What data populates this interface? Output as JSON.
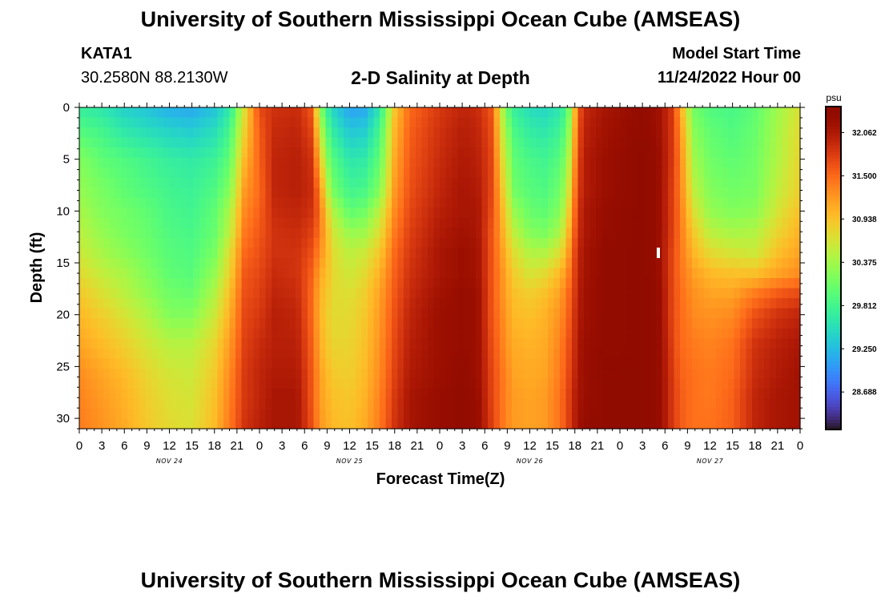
{
  "page": {
    "title": "University of Southern Mississippi Ocean Cube (AMSEAS)",
    "station_id": "KATA1",
    "station_coords": "30.2580N  88.2130W",
    "subtitle": "2-D Salinity at Depth",
    "model_start_label": "Model Start Time",
    "model_start_value": "11/24/2022 Hour 00",
    "footer_title": "University of Southern Mississippi Ocean Cube (AMSEAS)"
  },
  "chart_data": {
    "type": "heatmap",
    "title": "2-D Salinity at Depth",
    "xlabel": "Forecast Time(Z)",
    "ylabel": "Depth (ft)",
    "x_range_hours": [
      0,
      96
    ],
    "y_range_ft": [
      0,
      31
    ],
    "x_tick_labels": [
      "0",
      "3",
      "6",
      "9",
      "12",
      "15",
      "18",
      "21",
      "0",
      "3",
      "6",
      "9",
      "12",
      "15",
      "18",
      "21",
      "0",
      "3",
      "6",
      "9",
      "12",
      "15",
      "18",
      "21",
      "0",
      "3",
      "6",
      "9",
      "12",
      "15",
      "18",
      "21",
      "0"
    ],
    "y_ticks": [
      0,
      5,
      10,
      15,
      20,
      25,
      30
    ],
    "date_labels": [
      {
        "label": "NOV 24",
        "hour": 12
      },
      {
        "label": "NOV 25",
        "hour": 36
      },
      {
        "label": "NOV 26",
        "hour": 60
      },
      {
        "label": "NOV 27",
        "hour": 84
      }
    ],
    "colorbar": {
      "unit": "psu",
      "range": [
        28.2,
        32.4
      ],
      "tick_labels": [
        "32.062",
        "31.500",
        "30.938",
        "30.375",
        "29.812",
        "29.250",
        "28.688"
      ],
      "tick_values": [
        32.062,
        31.5,
        30.938,
        30.375,
        29.812,
        29.25,
        28.688
      ],
      "colormap": "turbo"
    },
    "salinity_profiles_psu": {
      "depths_ft": [
        0,
        2,
        5,
        8,
        10,
        12,
        14,
        16,
        18,
        20,
        23,
        26,
        28,
        31
      ],
      "profiles": [
        {
          "hour": 0,
          "values": [
            29.7,
            29.9,
            30.2,
            30.3,
            30.4,
            30.5,
            30.6,
            30.75,
            30.9,
            31.0,
            31.15,
            31.3,
            31.35,
            31.4
          ]
        },
        {
          "hour": 3,
          "values": [
            29.6,
            29.8,
            30.0,
            30.15,
            30.2,
            30.3,
            30.4,
            30.55,
            30.7,
            30.85,
            31.0,
            31.15,
            31.2,
            31.25
          ]
        },
        {
          "hour": 6,
          "values": [
            29.4,
            29.6,
            29.9,
            30.0,
            30.1,
            30.15,
            30.25,
            30.4,
            30.5,
            30.65,
            30.85,
            31.0,
            31.05,
            31.1
          ]
        },
        {
          "hour": 9,
          "values": [
            29.3,
            29.5,
            29.8,
            29.9,
            30.0,
            30.05,
            30.1,
            30.2,
            30.3,
            30.45,
            30.65,
            30.8,
            30.85,
            30.9
          ]
        },
        {
          "hour": 12,
          "values": [
            29.15,
            29.4,
            29.7,
            29.8,
            29.85,
            29.9,
            29.95,
            30.0,
            30.1,
            30.2,
            30.5,
            30.65,
            30.7,
            30.75
          ]
        },
        {
          "hour": 15,
          "values": [
            29.1,
            29.35,
            29.65,
            29.75,
            29.8,
            29.85,
            29.9,
            29.95,
            30.05,
            30.2,
            30.5,
            30.6,
            30.65,
            30.7
          ]
        },
        {
          "hour": 18,
          "values": [
            29.3,
            29.5,
            29.75,
            29.9,
            30.0,
            30.05,
            30.15,
            30.3,
            30.45,
            30.6,
            30.8,
            30.9,
            30.95,
            31.0
          ]
        },
        {
          "hour": 20,
          "values": [
            29.6,
            29.8,
            30.0,
            30.2,
            30.4,
            30.5,
            30.7,
            30.8,
            30.95,
            31.05,
            31.2,
            31.3,
            31.35,
            31.4
          ]
        },
        {
          "hour": 22,
          "values": [
            30.7,
            30.8,
            31.0,
            31.2,
            31.3,
            31.4,
            31.5,
            31.6,
            31.65,
            31.7,
            31.75,
            31.8,
            31.8,
            31.85
          ]
        },
        {
          "hour": 24,
          "values": [
            31.7,
            31.6,
            31.55,
            31.5,
            31.55,
            31.6,
            31.65,
            31.7,
            31.75,
            31.8,
            31.9,
            31.95,
            31.95,
            32.0
          ]
        },
        {
          "hour": 26,
          "values": [
            31.85,
            31.9,
            31.95,
            31.95,
            31.9,
            31.85,
            31.85,
            31.9,
            31.95,
            32.0,
            32.0,
            32.05,
            32.1,
            32.1
          ]
        },
        {
          "hour": 29,
          "values": [
            31.9,
            31.95,
            32.0,
            32.0,
            31.95,
            31.9,
            31.85,
            31.85,
            31.9,
            31.95,
            32.0,
            32.05,
            32.1,
            32.1
          ]
        },
        {
          "hour": 31,
          "values": [
            31.6,
            31.7,
            31.85,
            31.9,
            31.85,
            31.75,
            31.65,
            31.55,
            31.5,
            31.5,
            31.55,
            31.6,
            31.6,
            31.65
          ]
        },
        {
          "hour": 32,
          "values": [
            30.3,
            30.6,
            31.0,
            31.4,
            31.5,
            31.45,
            31.3,
            31.15,
            31.05,
            31.05,
            31.1,
            31.2,
            31.2,
            31.25
          ]
        },
        {
          "hour": 33,
          "values": [
            29.7,
            29.9,
            30.2,
            30.5,
            30.8,
            30.95,
            31.0,
            30.95,
            30.9,
            30.85,
            30.9,
            31.0,
            31.05,
            31.1
          ]
        },
        {
          "hour": 34,
          "values": [
            29.4,
            29.6,
            29.9,
            30.1,
            30.4,
            30.6,
            30.7,
            30.75,
            30.75,
            30.75,
            30.8,
            30.9,
            30.95,
            31.0
          ]
        },
        {
          "hour": 36,
          "values": [
            29.05,
            29.3,
            29.6,
            29.8,
            30.0,
            30.3,
            30.5,
            30.6,
            30.7,
            30.75,
            30.8,
            30.85,
            30.9,
            30.95
          ]
        },
        {
          "hour": 38,
          "values": [
            29.1,
            29.35,
            29.65,
            29.85,
            30.1,
            30.35,
            30.6,
            30.75,
            30.85,
            30.9,
            30.95,
            31.0,
            31.05,
            31.1
          ]
        },
        {
          "hour": 40,
          "values": [
            29.6,
            29.8,
            30.0,
            30.2,
            30.5,
            30.7,
            30.9,
            31.05,
            31.15,
            31.2,
            31.25,
            31.3,
            31.35,
            31.4
          ]
        },
        {
          "hour": 42,
          "values": [
            30.9,
            31.0,
            31.1,
            31.2,
            31.3,
            31.4,
            31.5,
            31.55,
            31.6,
            31.65,
            31.7,
            31.75,
            31.8,
            31.85
          ]
        },
        {
          "hour": 44,
          "values": [
            31.5,
            31.55,
            31.6,
            31.65,
            31.7,
            31.75,
            31.8,
            31.85,
            31.9,
            31.95,
            32.0,
            32.05,
            32.1,
            32.1
          ]
        },
        {
          "hour": 48,
          "values": [
            31.8,
            31.85,
            31.9,
            31.95,
            32.0,
            32.05,
            32.1,
            32.1,
            32.15,
            32.2,
            32.2,
            32.2,
            32.25,
            32.25
          ]
        },
        {
          "hour": 51,
          "values": [
            31.95,
            32.0,
            32.05,
            32.1,
            32.1,
            32.15,
            32.2,
            32.2,
            32.25,
            32.25,
            32.25,
            32.3,
            32.3,
            32.3
          ]
        },
        {
          "hour": 53,
          "values": [
            31.9,
            31.95,
            32.0,
            32.05,
            32.1,
            32.1,
            32.15,
            32.15,
            32.2,
            32.2,
            32.2,
            32.2,
            32.25,
            32.25
          ]
        },
        {
          "hour": 55,
          "values": [
            31.6,
            31.65,
            31.7,
            31.7,
            31.65,
            31.6,
            31.6,
            31.6,
            31.6,
            31.6,
            31.65,
            31.7,
            31.7,
            31.75
          ]
        },
        {
          "hour": 56,
          "values": [
            30.7,
            30.8,
            30.95,
            31.1,
            31.2,
            31.25,
            31.3,
            31.35,
            31.35,
            31.4,
            31.45,
            31.5,
            31.5,
            31.5
          ]
        },
        {
          "hour": 57,
          "values": [
            30.0,
            30.2,
            30.4,
            30.55,
            30.7,
            30.8,
            30.95,
            31.05,
            31.1,
            31.15,
            31.2,
            31.3,
            31.3,
            31.3
          ]
        },
        {
          "hour": 58,
          "values": [
            29.7,
            29.85,
            30.0,
            30.1,
            30.3,
            30.5,
            30.7,
            30.85,
            30.95,
            31.0,
            31.1,
            31.15,
            31.2,
            31.2
          ]
        },
        {
          "hour": 60,
          "values": [
            29.5,
            29.65,
            29.85,
            29.95,
            30.05,
            30.2,
            30.45,
            30.65,
            30.85,
            30.95,
            31.05,
            31.1,
            31.15,
            31.15
          ]
        },
        {
          "hour": 62,
          "values": [
            29.45,
            29.6,
            29.8,
            29.9,
            30.0,
            30.15,
            30.45,
            30.75,
            30.95,
            31.05,
            31.1,
            31.15,
            31.2,
            31.2
          ]
        },
        {
          "hour": 64,
          "values": [
            29.6,
            29.75,
            29.95,
            30.1,
            30.2,
            30.4,
            30.7,
            31.0,
            31.15,
            31.25,
            31.35,
            31.4,
            31.45,
            31.45
          ]
        },
        {
          "hour": 65,
          "values": [
            29.9,
            30.05,
            30.3,
            30.5,
            30.7,
            30.9,
            31.1,
            31.3,
            31.45,
            31.5,
            31.6,
            31.65,
            31.7,
            31.7
          ]
        },
        {
          "hour": 66,
          "values": [
            31.0,
            31.1,
            31.25,
            31.4,
            31.5,
            31.6,
            31.7,
            31.75,
            31.8,
            31.85,
            31.9,
            31.95,
            32.0,
            32.0
          ]
        },
        {
          "hour": 67,
          "values": [
            31.9,
            31.95,
            32.0,
            32.0,
            32.05,
            32.05,
            32.1,
            32.1,
            32.15,
            32.15,
            32.2,
            32.2,
            32.2,
            32.25
          ]
        },
        {
          "hour": 70,
          "values": [
            32.1,
            32.15,
            32.2,
            32.2,
            32.25,
            32.25,
            32.3,
            32.3,
            32.3,
            32.3,
            32.3,
            32.35,
            32.35,
            32.35
          ]
        },
        {
          "hour": 75,
          "values": [
            32.3,
            32.3,
            32.35,
            32.35,
            32.35,
            32.35,
            32.35,
            32.35,
            32.35,
            32.35,
            32.35,
            32.35,
            32.35,
            32.35
          ]
        },
        {
          "hour": 77,
          "values": [
            32.2,
            32.2,
            32.25,
            32.25,
            32.25,
            32.25,
            32.25,
            32.25,
            32.3,
            32.3,
            32.3,
            32.3,
            32.3,
            32.3
          ]
        },
        {
          "hour": 79,
          "values": [
            31.8,
            31.8,
            31.8,
            31.75,
            31.75,
            31.75,
            31.7,
            31.7,
            31.7,
            31.7,
            31.75,
            31.8,
            31.8,
            31.8
          ]
        },
        {
          "hour": 80,
          "values": [
            31.2,
            31.3,
            31.4,
            31.4,
            31.45,
            31.45,
            31.45,
            31.45,
            31.5,
            31.5,
            31.5,
            31.55,
            31.6,
            31.6
          ]
        },
        {
          "hour": 81,
          "values": [
            30.5,
            30.65,
            30.8,
            30.9,
            31.0,
            31.1,
            31.2,
            31.3,
            31.35,
            31.4,
            31.45,
            31.5,
            31.5,
            31.5
          ]
        },
        {
          "hour": 82,
          "values": [
            30.1,
            30.2,
            30.35,
            30.5,
            30.65,
            30.85,
            31.0,
            31.15,
            31.25,
            31.3,
            31.4,
            31.45,
            31.45,
            31.45
          ]
        },
        {
          "hour": 84,
          "values": [
            29.9,
            30.0,
            30.1,
            30.2,
            30.3,
            30.5,
            30.75,
            31.0,
            31.15,
            31.25,
            31.35,
            31.4,
            31.4,
            31.45
          ]
        },
        {
          "hour": 87,
          "values": [
            29.85,
            29.9,
            30.0,
            30.1,
            30.2,
            30.4,
            30.65,
            30.95,
            31.15,
            31.3,
            31.45,
            31.5,
            31.55,
            31.55
          ]
        },
        {
          "hour": 90,
          "values": [
            30.0,
            30.05,
            30.1,
            30.15,
            30.25,
            30.45,
            30.6,
            30.95,
            31.4,
            31.65,
            31.85,
            31.9,
            31.95,
            31.95
          ]
        },
        {
          "hour": 93,
          "values": [
            30.35,
            30.4,
            30.45,
            30.55,
            30.65,
            30.8,
            30.95,
            31.15,
            31.6,
            31.85,
            32.0,
            32.05,
            32.1,
            32.1
          ]
        },
        {
          "hour": 96,
          "values": [
            30.7,
            30.75,
            30.8,
            30.85,
            30.95,
            31.05,
            31.15,
            31.3,
            31.7,
            31.95,
            32.1,
            32.15,
            32.15,
            32.15
          ]
        }
      ]
    }
  }
}
